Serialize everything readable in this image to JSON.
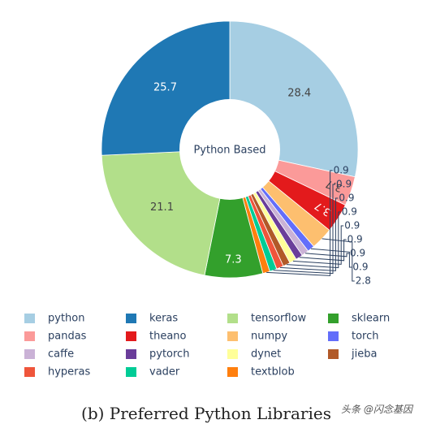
{
  "chart_data": {
    "type": "pie",
    "hole": true,
    "center_label": "Python Based",
    "caption": "(b) Preferred Python Libraries",
    "legend_placement": "bottom",
    "slices": [
      {
        "label": "python",
        "value": 28.4,
        "color": "#a6cee3",
        "text_color": "#444444"
      },
      {
        "label": "pandas",
        "value": 3.7,
        "color": "#fb9a99",
        "text_color": "#444444"
      },
      {
        "label": "theano",
        "value": 3.7,
        "color": "#e31a1c",
        "text_color": "#ffffff"
      },
      {
        "label": "numpy",
        "value": 2.8,
        "color": "#fdbf6f",
        "text_color": "#444444"
      },
      {
        "label": "torch",
        "value": 0.9,
        "color": "#636efa",
        "text_color": "#2a3f5f"
      },
      {
        "label": "caffe",
        "value": 0.9,
        "color": "#cab2d6",
        "text_color": "#2a3f5f"
      },
      {
        "label": "pytorch",
        "value": 0.9,
        "color": "#6a3d9a",
        "text_color": "#2a3f5f"
      },
      {
        "label": "dynet",
        "value": 0.9,
        "color": "#ffff99",
        "text_color": "#2a3f5f"
      },
      {
        "label": "jieba",
        "value": 0.9,
        "color": "#b15928",
        "text_color": "#2a3f5f"
      },
      {
        "label": "hyperas",
        "value": 0.9,
        "color": "#ef553b",
        "text_color": "#2a3f5f"
      },
      {
        "label": "vader",
        "value": 0.9,
        "color": "#00cc96",
        "text_color": "#2a3f5f"
      },
      {
        "label": "textblob",
        "value": 0.9,
        "color": "#ff7f0e",
        "text_color": "#2a3f5f"
      },
      {
        "label": "sklearn",
        "value": 7.3,
        "color": "#33a02c",
        "text_color": "#ffffff"
      },
      {
        "label": "tensorflow",
        "value": 21.1,
        "color": "#b2df8a",
        "text_color": "#444444"
      },
      {
        "label": "keras",
        "value": 25.7,
        "color": "#1f78b4",
        "text_color": "#ffffff"
      }
    ],
    "legend": [
      [
        "python",
        "keras",
        "tensorflow",
        "sklearn"
      ],
      [
        "pandas",
        "theano",
        "numpy",
        "torch"
      ],
      [
        "caffe",
        "pytorch",
        "dynet",
        "jieba"
      ],
      [
        "hyperas",
        "vader",
        "textblob"
      ]
    ]
  },
  "watermark": "头条 @闪念基因"
}
